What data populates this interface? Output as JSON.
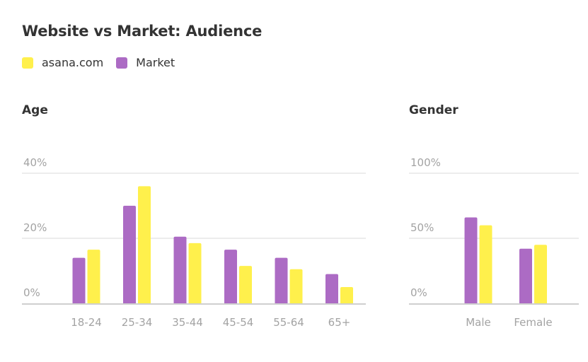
{
  "title": "Website vs Market: Audience",
  "colors": {
    "site": "#fff04c",
    "market": "#ac6bc4",
    "grid": "#ececec",
    "axis": "#cfcfcf",
    "tick_text": "#a3a3a3"
  },
  "legend": [
    {
      "label": "asana.com",
      "color": "#fff04c"
    },
    {
      "label": "Market",
      "color": "#ac6bc4"
    }
  ],
  "chart_data": [
    {
      "type": "bar",
      "title": "Age",
      "categories": [
        "18-24",
        "25-34",
        "35-44",
        "45-54",
        "55-64",
        "65+"
      ],
      "series": [
        {
          "name": "Market",
          "values": [
            14,
            30,
            20.5,
            16.5,
            14,
            9
          ]
        },
        {
          "name": "asana.com",
          "values": [
            16.5,
            36,
            18.5,
            11.5,
            10.5,
            5
          ]
        }
      ],
      "ylim": [
        0,
        40
      ],
      "yticks": [
        "0%",
        "20%",
        "40%"
      ],
      "grid": true
    },
    {
      "type": "bar",
      "title": "Gender",
      "categories": [
        "Male",
        "Female"
      ],
      "series": [
        {
          "name": "Market",
          "values": [
            66,
            42
          ]
        },
        {
          "name": "asana.com",
          "values": [
            60,
            45
          ]
        }
      ],
      "ylim": [
        0,
        100
      ],
      "yticks": [
        "0%",
        "50%",
        "100%"
      ],
      "grid": true
    }
  ]
}
